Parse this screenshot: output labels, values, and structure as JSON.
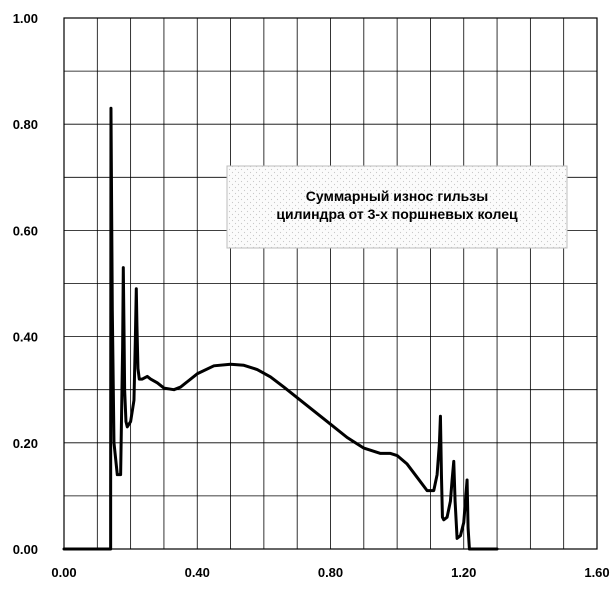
{
  "chart_data": {
    "type": "line",
    "title": "",
    "xlabel": "",
    "ylabel": "",
    "xlim": [
      0,
      1.6
    ],
    "ylim": [
      0,
      1.0
    ],
    "x_ticks": [
      "0.00",
      "0.40",
      "0.80",
      "1.20",
      "1.60"
    ],
    "y_ticks": [
      "0.00",
      "0.20",
      "0.40",
      "0.60",
      "0.80",
      "1.00"
    ],
    "grid": true,
    "annotation": {
      "line1": "Суммарный износ гильзы",
      "line2": "цилиндра от 3-х поршневых колец"
    },
    "series": [
      {
        "color": "#000000",
        "x": [
          0.0,
          0.14,
          0.14,
          0.141,
          0.145,
          0.15,
          0.16,
          0.17,
          0.176,
          0.178,
          0.18,
          0.182,
          0.186,
          0.19,
          0.2,
          0.21,
          0.214,
          0.217,
          0.219,
          0.222,
          0.226,
          0.235,
          0.25,
          0.26,
          0.28,
          0.3,
          0.33,
          0.35,
          0.37,
          0.4,
          0.45,
          0.5,
          0.54,
          0.58,
          0.62,
          0.66,
          0.7,
          0.75,
          0.8,
          0.85,
          0.9,
          0.95,
          0.98,
          1.0,
          1.03,
          1.06,
          1.09,
          1.11,
          1.12,
          1.127,
          1.13,
          1.133,
          1.136,
          1.14,
          1.15,
          1.16,
          1.165,
          1.17,
          1.174,
          1.18,
          1.19,
          1.2,
          1.205,
          1.21,
          1.213,
          1.217,
          1.22,
          1.225,
          1.26,
          1.3
        ],
        "values": [
          0.0,
          0.0,
          0.1,
          0.83,
          0.45,
          0.2,
          0.14,
          0.14,
          0.38,
          0.53,
          0.42,
          0.3,
          0.24,
          0.23,
          0.24,
          0.28,
          0.39,
          0.49,
          0.42,
          0.34,
          0.32,
          0.32,
          0.325,
          0.32,
          0.313,
          0.303,
          0.3,
          0.305,
          0.315,
          0.33,
          0.345,
          0.348,
          0.346,
          0.338,
          0.324,
          0.305,
          0.285,
          0.26,
          0.235,
          0.21,
          0.19,
          0.18,
          0.18,
          0.176,
          0.16,
          0.135,
          0.11,
          0.11,
          0.14,
          0.2,
          0.25,
          0.14,
          0.06,
          0.055,
          0.06,
          0.09,
          0.13,
          0.165,
          0.09,
          0.02,
          0.025,
          0.05,
          0.09,
          0.13,
          0.04,
          0.0,
          0.0,
          0.0,
          0.0,
          0.0
        ]
      }
    ]
  }
}
